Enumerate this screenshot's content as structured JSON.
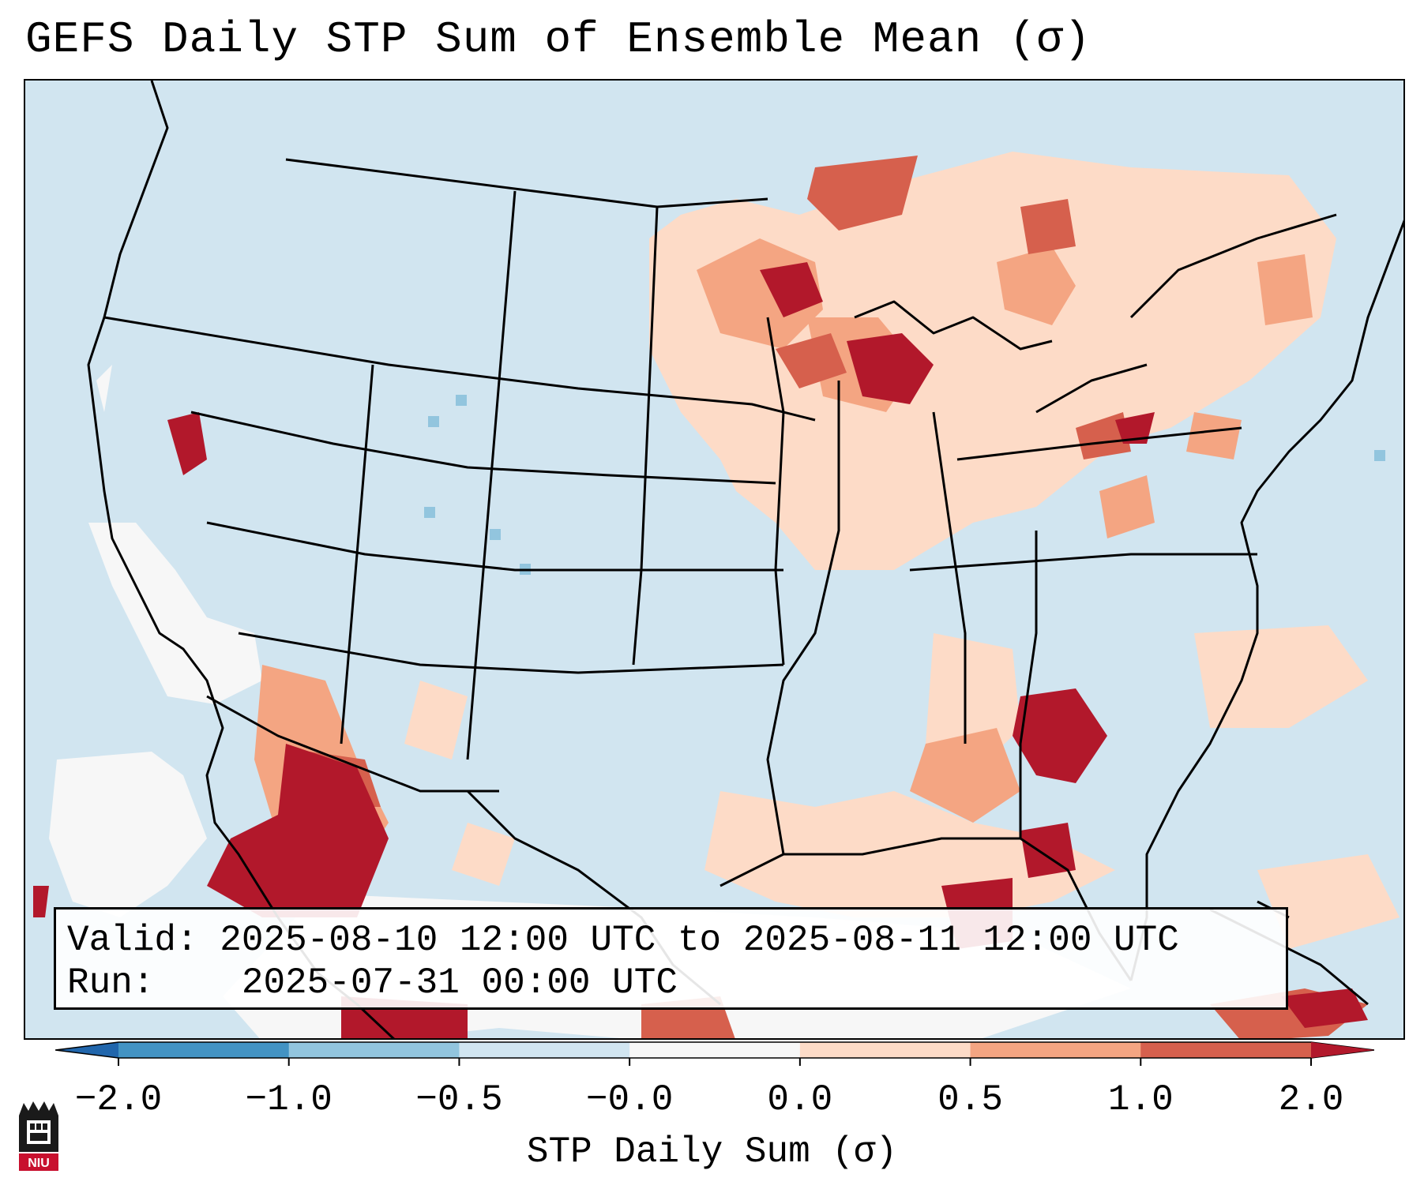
{
  "title": "GEFS Daily STP Sum of Ensemble Mean (σ)",
  "info": {
    "valid_label": "Valid:",
    "valid_value": "2025-08-10 12:00 UTC to 2025-08-11 12:00 UTC",
    "run_label": "Run:",
    "run_value": "2025-07-31 00:00 UTC"
  },
  "colorbar": {
    "label": "STP Daily Sum (σ)",
    "ticks": [
      "−2.0",
      "−1.0",
      "−0.5",
      "−0.0",
      "0.0",
      "0.5",
      "1.0",
      "2.0"
    ],
    "colors": [
      "#4393c3",
      "#92c5de",
      "#d1e5f0",
      "#f7f7f7",
      "#fddbc7",
      "#f4a582",
      "#d6604d"
    ],
    "extend_low_color": "#2166ac",
    "extend_high_color": "#b2182b"
  },
  "logo": {
    "text": "NIU",
    "color": "#c8102e"
  },
  "legend_colors": {
    "background": "#d1e5f0",
    "light": "#fddbc7",
    "medium": "#f4a582",
    "strong": "#d6604d",
    "extreme": "#b2182b",
    "neutral": "#f7f7f7",
    "negative": "#92c5de"
  }
}
